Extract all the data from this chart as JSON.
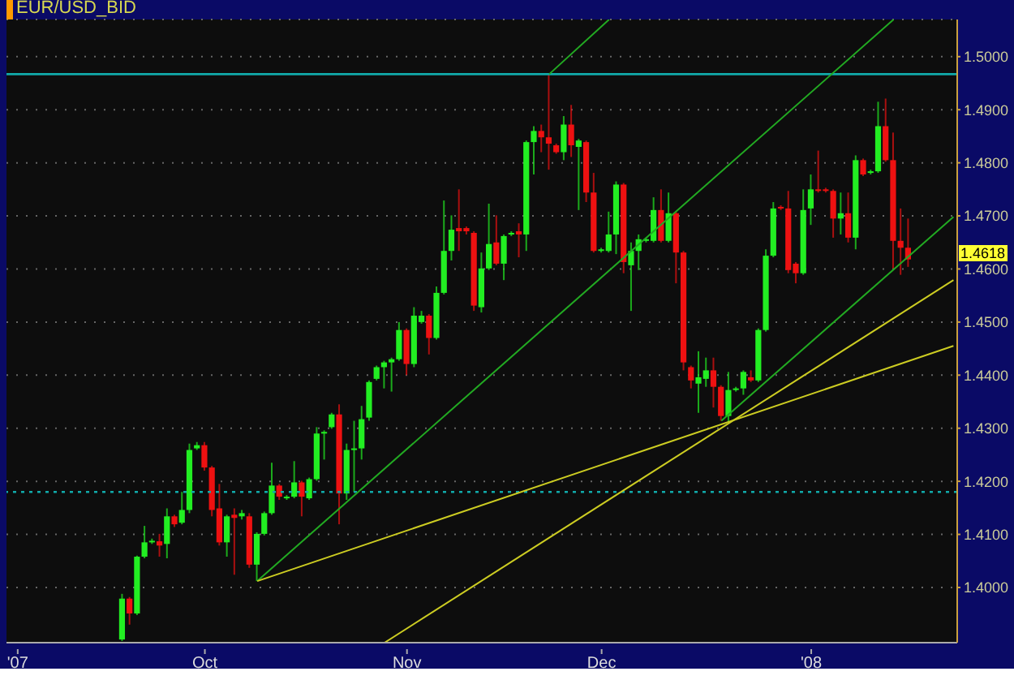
{
  "chart_data": {
    "type": "candlestick",
    "title": "EUR/USD_BID",
    "categories": [
      null,
      "'07",
      null,
      null,
      null,
      null,
      null,
      null,
      null,
      null,
      null,
      null,
      null,
      null,
      null,
      null,
      null,
      null,
      null,
      null,
      null,
      null,
      null,
      null,
      null,
      null,
      "Oct",
      null,
      null,
      null,
      null,
      null,
      null,
      null,
      null,
      null,
      null,
      null,
      null,
      null,
      null,
      null,
      null,
      null,
      null,
      null,
      null,
      null,
      null,
      null,
      null,
      null,
      null,
      "Nov",
      null,
      null,
      null,
      null,
      null,
      null,
      null,
      null,
      null,
      null,
      null,
      null,
      null,
      null,
      null,
      null,
      null,
      null,
      null,
      null,
      null,
      null,
      null,
      null,
      null,
      "Dec",
      null,
      null,
      null,
      null,
      null,
      null,
      null,
      null,
      null,
      null,
      null,
      null,
      null,
      null,
      null,
      null,
      null,
      null,
      null,
      null,
      null,
      null,
      null,
      null,
      null,
      null,
      null,
      "'08",
      null,
      null,
      null,
      null,
      null,
      null,
      null,
      null,
      null,
      null,
      null,
      null,
      null,
      null,
      null,
      null,
      null,
      null,
      null
    ],
    "ohlc": [
      null,
      null,
      null,
      null,
      null,
      null,
      null,
      null,
      null,
      null,
      null,
      null,
      null,
      null,
      null,
      [
        1.3902,
        1.3988,
        1.3899,
        1.3979
      ],
      [
        1.3979,
        1.3982,
        1.393,
        1.3951
      ],
      [
        1.3951,
        1.406,
        1.3948,
        1.4058
      ],
      [
        1.4058,
        1.4116,
        1.4055,
        1.4085
      ],
      [
        1.4085,
        1.4092,
        1.4082,
        1.4088
      ],
      [
        1.4087,
        1.4101,
        1.4058,
        1.4079
      ],
      [
        1.4082,
        1.4149,
        1.4055,
        1.4134
      ],
      [
        1.4134,
        1.4137,
        1.4114,
        1.4119
      ],
      [
        1.4122,
        1.418,
        1.4119,
        1.4146
      ],
      [
        1.4146,
        1.4271,
        1.414,
        1.4259
      ],
      [
        1.4262,
        1.4274,
        1.4259,
        1.4268
      ],
      [
        1.4268,
        1.4274,
        1.422,
        1.4226
      ],
      [
        1.4226,
        1.4229,
        1.4134,
        1.4146
      ],
      [
        1.4149,
        1.4195,
        1.4079,
        1.4085
      ],
      [
        1.4085,
        1.4137,
        1.4058,
        1.4134
      ],
      [
        1.4137,
        1.4149,
        1.4024,
        1.4131
      ],
      [
        1.4134,
        1.4146,
        1.4128,
        1.414
      ],
      [
        1.4134,
        1.414,
        1.4037,
        1.4043
      ],
      [
        1.4043,
        1.4104,
        1.4012,
        1.4101
      ],
      [
        1.4101,
        1.4143,
        1.4098,
        1.414
      ],
      [
        1.414,
        1.4235,
        1.4137,
        1.4192
      ],
      [
        1.4192,
        1.4195,
        1.4165,
        1.4171
      ],
      [
        1.4168,
        1.4174,
        1.4165,
        1.4171
      ],
      [
        1.4171,
        1.4238,
        1.4168,
        1.4198
      ],
      [
        1.4198,
        1.4201,
        1.4134,
        1.4171
      ],
      [
        1.4168,
        1.4207,
        1.4165,
        1.4204
      ],
      [
        1.4204,
        1.4302,
        1.4201,
        1.429
      ],
      [
        1.429,
        1.4296,
        1.4241,
        1.4293
      ],
      [
        1.4302,
        1.4329,
        1.4299,
        1.4326
      ],
      [
        1.4326,
        1.4345,
        1.4119,
        1.4177
      ],
      [
        1.4177,
        1.4271,
        1.4165,
        1.4259
      ],
      [
        1.4259,
        1.4314,
        1.418,
        1.4262
      ],
      [
        1.4262,
        1.4342,
        1.4241,
        1.4317
      ],
      [
        1.432,
        1.439,
        1.4314,
        1.4387
      ],
      [
        1.4393,
        1.4418,
        1.439,
        1.4415
      ],
      [
        1.4415,
        1.4427,
        1.4375,
        1.4424
      ],
      [
        1.4424,
        1.4433,
        1.4369,
        1.443
      ],
      [
        1.443,
        1.45,
        1.4427,
        1.4485
      ],
      [
        1.4485,
        1.4488,
        1.44,
        1.4421
      ],
      [
        1.4421,
        1.4528,
        1.4415,
        1.4512
      ],
      [
        1.45,
        1.4521,
        1.4497,
        1.4512
      ],
      [
        1.4512,
        1.4515,
        1.4439,
        1.447
      ],
      [
        1.447,
        1.4567,
        1.4467,
        1.4555
      ],
      [
        1.4555,
        1.4729,
        1.4552,
        1.4634
      ],
      [
        1.4634,
        1.4701,
        1.4616,
        1.4674
      ],
      [
        1.4677,
        1.475,
        1.4634,
        1.4671
      ],
      [
        1.4677,
        1.468,
        1.4665,
        1.4671
      ],
      [
        1.4668,
        1.4671,
        1.4521,
        1.4531
      ],
      [
        1.4528,
        1.4631,
        1.4518,
        1.4601
      ],
      [
        1.4601,
        1.4723,
        1.4598,
        1.4647
      ],
      [
        1.465,
        1.4701,
        1.4607,
        1.461
      ],
      [
        1.461,
        1.4665,
        1.4579,
        1.4662
      ],
      [
        1.4665,
        1.4671,
        1.4662,
        1.4668
      ],
      [
        1.4671,
        1.4686,
        1.4622,
        1.4665
      ],
      [
        1.4665,
        1.4842,
        1.4634,
        1.4839
      ],
      [
        1.4839,
        1.4869,
        1.4778,
        1.486
      ],
      [
        1.486,
        1.4872,
        1.482,
        1.4848
      ],
      [
        1.4848,
        1.4967,
        1.4787,
        1.4836
      ],
      [
        1.4833,
        1.4836,
        1.4817,
        1.482
      ],
      [
        1.482,
        1.4888,
        1.4805,
        1.4872
      ],
      [
        1.4872,
        1.4909,
        1.4811,
        1.4833
      ],
      [
        1.483,
        1.4845,
        1.4711,
        1.4842
      ],
      [
        1.4839,
        1.4842,
        1.4726,
        1.4744
      ],
      [
        1.4744,
        1.4781,
        1.4631,
        1.4634
      ],
      [
        1.4634,
        1.464,
        1.4631,
        1.4637
      ],
      [
        1.4634,
        1.4708,
        1.4631,
        1.4665
      ],
      [
        1.4665,
        1.4765,
        1.4628,
        1.4759
      ],
      [
        1.4759,
        1.4762,
        1.4592,
        1.4613
      ],
      [
        1.4607,
        1.465,
        1.4521,
        1.4634
      ],
      [
        1.4634,
        1.4665,
        1.4598,
        1.4656
      ],
      [
        1.4653,
        1.4659,
        1.465,
        1.4656
      ],
      [
        1.4653,
        1.4735,
        1.465,
        1.4711
      ],
      [
        1.4711,
        1.475,
        1.465,
        1.4653
      ],
      [
        1.4653,
        1.4744,
        1.465,
        1.4705
      ],
      [
        1.4705,
        1.4708,
        1.4573,
        1.4631
      ],
      [
        1.4631,
        1.4634,
        1.4409,
        1.4424
      ],
      [
        1.4415,
        1.4418,
        1.4375,
        1.439
      ],
      [
        1.4384,
        1.4445,
        1.4329,
        1.4396
      ],
      [
        1.4393,
        1.4433,
        1.4378,
        1.4409
      ],
      [
        1.4409,
        1.4433,
        1.4339,
        1.4378
      ],
      [
        1.4378,
        1.4381,
        1.4314,
        1.4323
      ],
      [
        1.4323,
        1.4406,
        1.431,
        1.4372
      ],
      [
        1.4372,
        1.4378,
        1.4369,
        1.4375
      ],
      [
        1.4375,
        1.4409,
        1.4363,
        1.4406
      ],
      [
        1.4396,
        1.4409,
        1.4387,
        1.439
      ],
      [
        1.439,
        1.4488,
        1.4387,
        1.4485
      ],
      [
        1.4485,
        1.4637,
        1.4482,
        1.4625
      ],
      [
        1.4625,
        1.4726,
        1.4622,
        1.4714
      ],
      [
        1.4717,
        1.472,
        1.4711,
        1.4714
      ],
      [
        1.4714,
        1.4747,
        1.4592,
        1.4598
      ],
      [
        1.461,
        1.4613,
        1.4573,
        1.4592
      ],
      [
        1.4592,
        1.475,
        1.4589,
        1.4711
      ],
      [
        1.4714,
        1.4778,
        1.4683,
        1.475
      ],
      [
        1.475,
        1.4823,
        1.4744,
        1.4747
      ],
      [
        1.475,
        1.4753,
        1.4744,
        1.4747
      ],
      [
        1.4747,
        1.475,
        1.4659,
        1.4695
      ],
      [
        1.4695,
        1.4744,
        1.4665,
        1.4705
      ],
      [
        1.4705,
        1.4744,
        1.465,
        1.4659
      ],
      [
        1.4659,
        1.4814,
        1.4637,
        1.4805
      ],
      [
        1.4805,
        1.4808,
        1.4775,
        1.4778
      ],
      [
        1.4781,
        1.4787,
        1.4778,
        1.4784
      ],
      [
        1.4784,
        1.4915,
        1.4781,
        1.4869
      ],
      [
        1.4869,
        1.4921,
        1.4802,
        1.4805
      ],
      [
        1.4805,
        1.4857,
        1.4601,
        1.4653
      ],
      [
        1.4653,
        1.4714,
        1.4589,
        1.464
      ],
      [
        1.464,
        1.4695,
        1.4604,
        1.4618
      ],
      null,
      null,
      null,
      null,
      null,
      null
    ],
    "colors": [
      null,
      null,
      null,
      null,
      null,
      null,
      null,
      null,
      null,
      null,
      null,
      null,
      null,
      null,
      null,
      "#22ee22",
      "#ee1111",
      "#22ee22",
      "#22ee22",
      "#22ee22",
      "#ee1111",
      "#22ee22",
      "#ee1111",
      "#22ee22",
      "#22ee22",
      "#22ee22",
      "#ee1111",
      "#ee1111",
      "#ee1111",
      "#22ee22",
      "#ee1111",
      "#22ee22",
      "#ee1111",
      "#22ee22",
      "#22ee22",
      "#22ee22",
      "#ee1111",
      "#22ee22",
      "#22ee22",
      "#ee1111",
      "#22ee22",
      "#22ee22",
      "#22ee22",
      "#22ee22",
      "#ee1111",
      "#22ee22",
      "#22ee22",
      "#22ee22",
      "#22ee22",
      "#22ee22",
      "#22ee22",
      "#22ee22",
      "#22ee22",
      "#ee1111",
      "#22ee22",
      "#22ee22",
      "#ee1111",
      "#22ee22",
      "#22ee22",
      "#22ee22",
      "#ee1111",
      "#ee1111",
      "#ee1111",
      "#22ee22",
      "#22ee22",
      "#ee1111",
      "#22ee22",
      "#22ee22",
      "#ee1111",
      "#22ee22",
      "#22ee22",
      "#ee1111",
      "#ee1111",
      "#ee1111",
      "#22ee22",
      "#ee1111",
      "#22ee22",
      "#ee1111",
      "#ee1111",
      "#22ee22",
      "#22ee22",
      "#22ee22",
      "#ee1111",
      "#22ee22",
      "#22ee22",
      "#22ee22",
      "#22ee22",
      "#ee1111",
      "#22ee22",
      "#ee1111",
      "#ee1111",
      "#ee1111",
      "#22ee22",
      "#22ee22",
      "#ee1111",
      "#ee1111",
      "#22ee22",
      "#22ee22",
      "#22ee22",
      "#ee1111",
      "#22ee22",
      "#22ee22",
      "#22ee22",
      "#ee1111",
      "#ee1111",
      "#ee1111",
      "#22ee22",
      "#22ee22",
      "#ee1111",
      "#ee1111",
      "#ee1111",
      "#22ee22",
      "#ee1111",
      "#22ee22",
      "#ee1111",
      "#22ee22",
      "#22ee22",
      "#ee1111",
      "#ee1111",
      "#ee1111",
      "#ee1111",
      null,
      null,
      null,
      null,
      null,
      null
    ],
    "series": [
      {
        "type": "line",
        "color": "#22aa22",
        "values": [
          null,
          null,
          null,
          null,
          null,
          null,
          null,
          null,
          null,
          null,
          null,
          null,
          null,
          null,
          null,
          null,
          null,
          null,
          null,
          null,
          null,
          null,
          null,
          null,
          null,
          null,
          null,
          null,
          null,
          null,
          null,
          null,
          null,
          null,
          null,
          null,
          null,
          null,
          null,
          null,
          null,
          null,
          null,
          null,
          null,
          null,
          null,
          null,
          null,
          null,
          null,
          null,
          null,
          null,
          null,
          null,
          null,
          null,
          null,
          null,
          null,
          null,
          null,
          null,
          null,
          null,
          null,
          null,
          null,
          null,
          null,
          null,
          1.4967,
          null,
          null,
          null,
          null,
          null,
          null,
          null,
          1.507,
          null,
          null,
          null,
          null,
          null,
          null,
          null,
          null,
          null,
          null,
          null,
          null,
          null,
          null,
          null,
          null,
          null,
          null,
          null,
          null,
          null,
          null,
          null,
          null,
          null,
          null,
          null,
          null,
          null,
          null,
          null,
          null,
          null,
          null,
          null,
          null,
          null,
          null,
          null,
          null,
          null,
          null,
          null,
          null,
          null,
          null
        ]
      },
      {
        "type": "line",
        "color": "#22aa22",
        "values": [
          null,
          null,
          null,
          null,
          null,
          null,
          null,
          null,
          null,
          null,
          null,
          null,
          null,
          null,
          null,
          null,
          null,
          null,
          null,
          null,
          null,
          null,
          null,
          null,
          null,
          null,
          null,
          null,
          null,
          null,
          null,
          null,
          null,
          1.4012,
          null,
          null,
          null,
          null,
          null,
          null,
          null,
          null,
          null,
          null,
          null,
          null,
          null,
          null,
          null,
          null,
          null,
          null,
          null,
          null,
          null,
          null,
          null,
          null,
          null,
          null,
          null,
          null,
          null,
          null,
          null,
          null,
          null,
          null,
          null,
          null,
          null,
          null,
          null,
          null,
          null,
          null,
          null,
          null,
          null,
          null,
          null,
          null,
          null,
          null,
          null,
          null,
          null,
          null,
          null,
          null,
          null,
          null,
          null,
          null,
          null,
          null,
          null,
          null,
          null,
          null,
          null,
          null,
          null,
          null,
          null,
          null,
          null,
          null,
          null,
          null,
          null,
          null,
          null,
          null,
          null,
          null,
          null,
          null,
          1.507,
          null,
          null,
          null,
          null,
          null,
          null,
          null,
          null
        ]
      },
      {
        "type": "line",
        "color": "#22aa22",
        "values": [
          null,
          null,
          null,
          null,
          null,
          null,
          null,
          null,
          null,
          null,
          null,
          null,
          null,
          null,
          null,
          null,
          null,
          null,
          null,
          null,
          null,
          null,
          null,
          null,
          null,
          null,
          null,
          null,
          null,
          null,
          null,
          null,
          null,
          null,
          null,
          null,
          null,
          null,
          null,
          null,
          null,
          null,
          null,
          null,
          null,
          null,
          null,
          null,
          null,
          null,
          null,
          null,
          null,
          null,
          null,
          null,
          null,
          null,
          null,
          null,
          null,
          null,
          null,
          null,
          null,
          null,
          null,
          null,
          null,
          null,
          null,
          null,
          null,
          null,
          null,
          null,
          null,
          null,
          null,
          null,
          null,
          null,
          null,
          null,
          null,
          null,
          null,
          null,
          null,
          null,
          null,
          null,
          null,
          null,
          null,
          1.4314,
          null,
          null,
          null,
          null,
          null,
          null,
          null,
          null,
          null,
          null,
          null,
          null,
          null,
          null,
          null,
          null,
          null,
          null,
          null,
          null,
          null,
          null,
          null,
          null,
          null,
          null,
          null,
          null,
          null,
          null,
          1.4698
        ]
      },
      {
        "type": "line",
        "color": "#cccc22",
        "values": [
          null,
          null,
          null,
          null,
          null,
          null,
          null,
          null,
          null,
          null,
          null,
          null,
          null,
          null,
          null,
          null,
          null,
          null,
          null,
          null,
          null,
          null,
          null,
          null,
          null,
          null,
          null,
          null,
          null,
          null,
          null,
          null,
          null,
          1.4012,
          null,
          null,
          null,
          null,
          null,
          null,
          null,
          null,
          null,
          null,
          null,
          null,
          null,
          null,
          null,
          null,
          null,
          null,
          null,
          null,
          null,
          null,
          null,
          null,
          null,
          null,
          null,
          null,
          null,
          null,
          null,
          null,
          null,
          null,
          null,
          null,
          null,
          null,
          null,
          null,
          null,
          null,
          null,
          null,
          null,
          null,
          null,
          null,
          null,
          null,
          null,
          null,
          null,
          null,
          null,
          null,
          null,
          null,
          null,
          null,
          null,
          null,
          null,
          null,
          null,
          null,
          null,
          null,
          null,
          null,
          null,
          null,
          null,
          null,
          null,
          null,
          null,
          null,
          null,
          null,
          null,
          null,
          null,
          null,
          null,
          null,
          null,
          null,
          null,
          null,
          null,
          null,
          1.4455
        ]
      },
      {
        "type": "line",
        "color": "#cccc22",
        "values": [
          null,
          null,
          null,
          null,
          null,
          null,
          null,
          null,
          null,
          null,
          null,
          null,
          null,
          null,
          null,
          null,
          null,
          null,
          null,
          null,
          null,
          null,
          null,
          null,
          null,
          null,
          null,
          null,
          null,
          null,
          null,
          null,
          null,
          null,
          null,
          null,
          null,
          null,
          null,
          null,
          null,
          null,
          null,
          null,
          null,
          null,
          null,
          null,
          null,
          null,
          1.3896,
          null,
          null,
          null,
          null,
          null,
          null,
          null,
          null,
          null,
          null,
          null,
          null,
          null,
          null,
          null,
          null,
          null,
          null,
          null,
          null,
          null,
          null,
          null,
          null,
          null,
          null,
          null,
          null,
          null,
          null,
          null,
          null,
          null,
          null,
          null,
          null,
          null,
          null,
          null,
          null,
          null,
          null,
          null,
          null,
          null,
          null,
          null,
          null,
          null,
          null,
          null,
          null,
          null,
          null,
          null,
          null,
          null,
          null,
          null,
          null,
          null,
          null,
          null,
          null,
          null,
          null,
          null,
          null,
          null,
          null,
          null,
          null,
          null,
          null,
          null,
          1.4579
        ]
      }
    ],
    "marker": "none",
    "line_style": "solid",
    "ref_lines": [
      {
        "axis": "y",
        "value": 1.4967,
        "color": "#11aaaa",
        "line_style": "solid"
      },
      {
        "axis": "y",
        "value": 1.418,
        "color": "#11aaaa",
        "line_style": "dotted"
      }
    ],
    "annotations": [
      "1.4618"
    ],
    "ylim": [
      1.3896,
      1.507
    ],
    "yticks": [
      {
        "value": 1.4,
        "label": "1.4000"
      },
      {
        "value": 1.41,
        "label": "1.4100"
      },
      {
        "value": 1.42,
        "label": "1.4200"
      },
      {
        "value": 1.43,
        "label": "1.4300"
      },
      {
        "value": 1.44,
        "label": "1.4400"
      },
      {
        "value": 1.45,
        "label": "1.4500"
      },
      {
        "value": 1.46,
        "label": "1.4600"
      },
      {
        "value": 1.47,
        "label": "1.4700"
      },
      {
        "value": 1.48,
        "label": "1.4800"
      },
      {
        "value": 1.49,
        "label": "1.4900"
      },
      {
        "value": 1.5,
        "label": "1.5000"
      }
    ],
    "grid": "y"
  }
}
